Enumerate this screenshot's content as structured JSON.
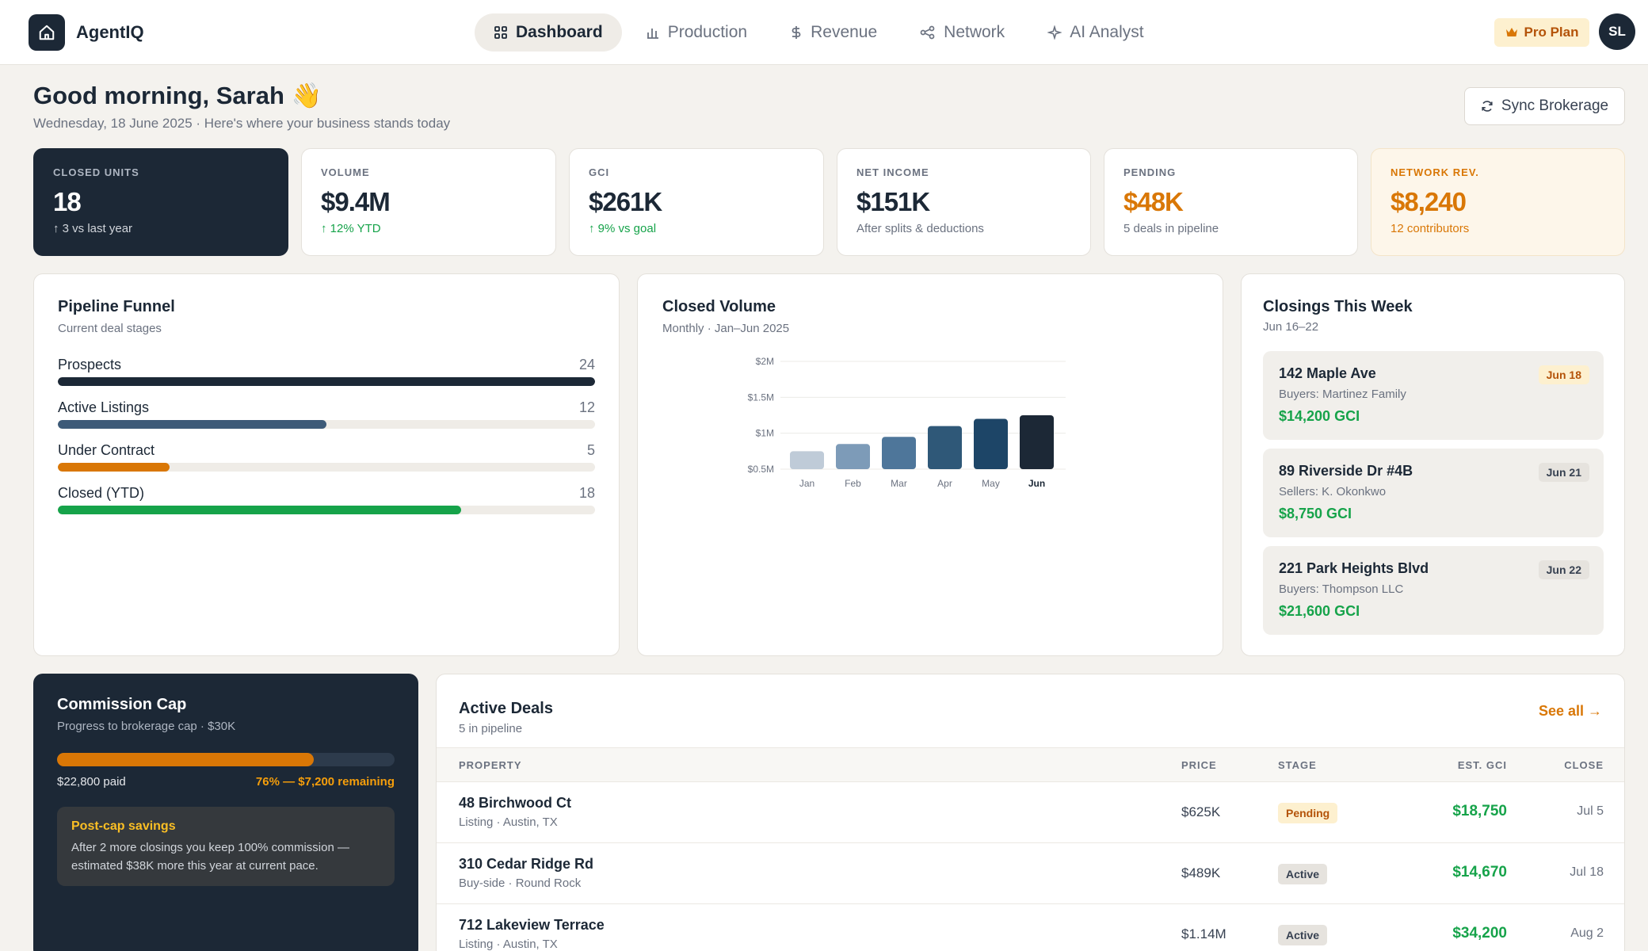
{
  "brand": {
    "name": "AgentIQ",
    "icon": "home-icon"
  },
  "nav": [
    {
      "label": "Dashboard",
      "icon": "grid-icon",
      "active": true
    },
    {
      "label": "Production",
      "icon": "bar-chart-icon",
      "active": false
    },
    {
      "label": "Revenue",
      "icon": "dollar-icon",
      "active": false
    },
    {
      "label": "Network",
      "icon": "network-icon",
      "active": false
    },
    {
      "label": "AI Analyst",
      "icon": "sparkle-icon",
      "active": false
    }
  ],
  "plan": {
    "label": "Pro Plan",
    "icon": "crown-icon"
  },
  "user": {
    "initials": "SL"
  },
  "header": {
    "greeting": "Good morning, Sarah 👋",
    "subtitle": "Wednesday, 18 June 2025 · Here's where your business stands today",
    "sync_label": "Sync Brokerage"
  },
  "stats": [
    {
      "label": "CLOSED UNITS",
      "value": "18",
      "sub": "↑ 3 vs last year"
    },
    {
      "label": "VOLUME",
      "value": "$9.4M",
      "sub": "↑ 12% YTD"
    },
    {
      "label": "GCI",
      "value": "$261K",
      "sub": "↑ 9% vs goal"
    },
    {
      "label": "NET INCOME",
      "value": "$151K",
      "sub": "After splits & deductions"
    },
    {
      "label": "PENDING",
      "value": "$48K",
      "sub": "5 deals in pipeline"
    },
    {
      "label": "NETWORK REV.",
      "value": "$8,240",
      "sub": "12 contributors"
    }
  ],
  "funnel": {
    "title": "Pipeline Funnel",
    "subtitle": "Current deal stages",
    "max": 24,
    "rows": [
      {
        "label": "Prospects",
        "value": 24,
        "color": "#1c2836"
      },
      {
        "label": "Active Listings",
        "value": 12,
        "color": "#3d5a78"
      },
      {
        "label": "Under Contract",
        "value": 5,
        "color": "#d97706"
      },
      {
        "label": "Closed (YTD)",
        "value": 18,
        "color": "#16a34a"
      }
    ]
  },
  "volume": {
    "title": "Closed Volume",
    "subtitle": "Monthly · Jan–Jun 2025"
  },
  "chart_data": {
    "type": "bar",
    "categories": [
      "Jan",
      "Feb",
      "Mar",
      "Apr",
      "May",
      "Jun"
    ],
    "values": [
      0.75,
      0.85,
      0.95,
      1.1,
      1.2,
      1.25
    ],
    "yticks": [
      "$0.5M",
      "$1M",
      "$1.5M",
      "$2M"
    ],
    "ytick_values": [
      0.5,
      1,
      1.5,
      2
    ],
    "ylim": [
      0.5,
      2
    ],
    "colors": [
      "#bfcbd8",
      "#7d9bb8",
      "#4e769a",
      "#2f5878",
      "#1d4567",
      "#1c2836"
    ],
    "title": "Closed Volume",
    "xlabel": "",
    "ylabel": ""
  },
  "closings": {
    "title": "Closings This Week",
    "subtitle": "Jun 16–22",
    "items": [
      {
        "address": "142 Maple Ave",
        "party": "Buyers: Martinez Family",
        "gci": "$14,200 GCI",
        "date": "Jun 18",
        "highlight": true
      },
      {
        "address": "89 Riverside Dr #4B",
        "party": "Sellers: K. Okonkwo",
        "gci": "$8,750 GCI",
        "date": "Jun 21",
        "highlight": false
      },
      {
        "address": "221 Park Heights Blvd",
        "party": "Buyers: Thompson LLC",
        "gci": "$21,600 GCI",
        "date": "Jun 22",
        "highlight": false
      }
    ]
  },
  "commission": {
    "title": "Commission Cap",
    "subtitle": "Progress to brokerage cap · $30K",
    "progress": 0.76,
    "paid": "$22,800 paid",
    "remaining": "76% — $7,200 remaining",
    "savings_title": "Post-cap savings",
    "savings_body": "After 2 more closings you keep 100% commission — estimated $38K more this year at current pace."
  },
  "deals": {
    "title": "Active Deals",
    "subtitle": "5 in pipeline",
    "see_all": "See all →",
    "columns": [
      "PROPERTY",
      "PRICE",
      "STAGE",
      "EST. GCI",
      "CLOSE"
    ],
    "rows": [
      {
        "property": "48 Birchwood Ct",
        "detail": "Listing · Austin, TX",
        "price": "$625K",
        "stage": "Pending",
        "gci": "$18,750",
        "close": "Jul 5"
      },
      {
        "property": "310 Cedar Ridge Rd",
        "detail": "Buy-side · Round Rock",
        "price": "$489K",
        "stage": "Active",
        "gci": "$14,670",
        "close": "Jul 18"
      },
      {
        "property": "712 Lakeview Terrace",
        "detail": "Listing · Austin, TX",
        "price": "$1.14M",
        "stage": "Active",
        "gci": "$34,200",
        "close": "Aug 2"
      }
    ]
  }
}
